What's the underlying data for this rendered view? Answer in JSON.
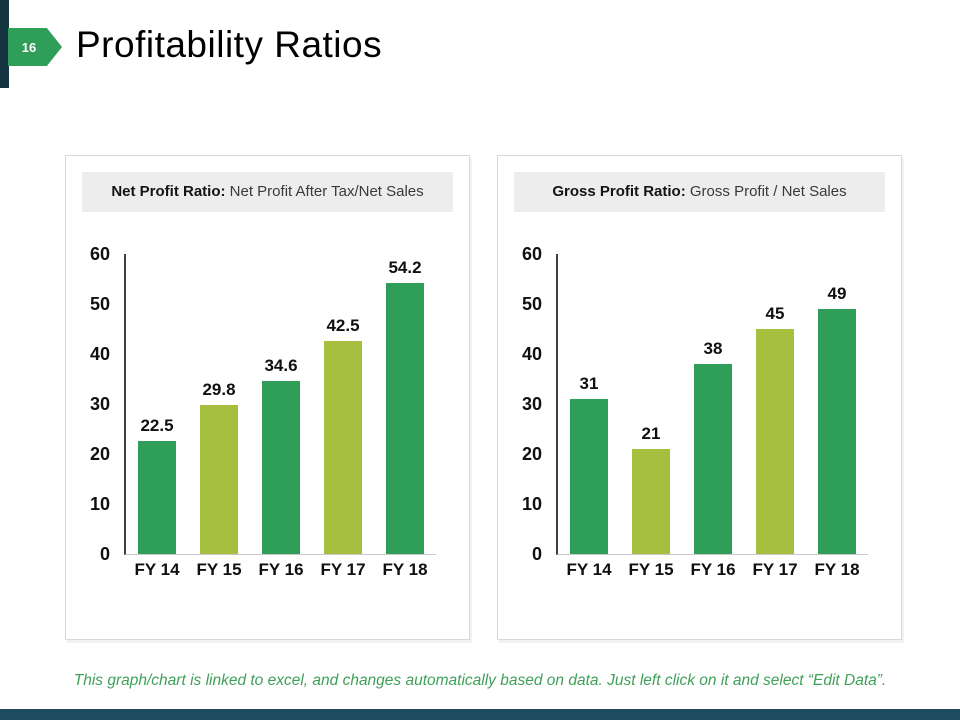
{
  "slide": {
    "page_number": "16",
    "title": "Profitability Ratios",
    "footnote": "This graph/chart is linked to excel, and changes automatically based on data. Just left click on it and select “Edit Data”."
  },
  "colors": {
    "bar_green": "#2F9E58",
    "bar_yellow_green": "#A6BF3F",
    "badge_green": "#2F9E58",
    "accent_strip": "#143540",
    "bottom_bar": "#1C4C5E",
    "footnote_green": "#3FA05A",
    "header_box_bg": "#EDEDED"
  },
  "chart_data": [
    {
      "type": "bar",
      "title_bold": "Net Profit Ratio:",
      "title_rest": "Net Profit After Tax/Net Sales",
      "categories": [
        "FY 14",
        "FY 15",
        "FY 16",
        "FY 17",
        "FY 18"
      ],
      "values": [
        22.5,
        29.8,
        34.6,
        42.5,
        54.2
      ],
      "value_labels": [
        "22.5",
        "29.8",
        "34.6",
        "42.5",
        "54.2"
      ],
      "ylim": [
        0,
        60
      ],
      "yticks": [
        0,
        10,
        20,
        30,
        40,
        50,
        60
      ],
      "bar_palette_pattern": [
        "green",
        "yellow_green",
        "green",
        "yellow_green",
        "green"
      ],
      "grid": false,
      "legend": false
    },
    {
      "type": "bar",
      "title_bold": "Gross Profit Ratio:",
      "title_rest": "Gross Profit / Net Sales",
      "categories": [
        "FY 14",
        "FY 15",
        "FY 16",
        "FY 17",
        "FY 18"
      ],
      "values": [
        31,
        21,
        38,
        45,
        49
      ],
      "value_labels": [
        "31",
        "21",
        "38",
        "45",
        "49"
      ],
      "ylim": [
        0,
        60
      ],
      "yticks": [
        0,
        10,
        20,
        30,
        40,
        50,
        60
      ],
      "bar_palette_pattern": [
        "green",
        "yellow_green",
        "green",
        "yellow_green",
        "green"
      ],
      "grid": false,
      "legend": false
    }
  ]
}
